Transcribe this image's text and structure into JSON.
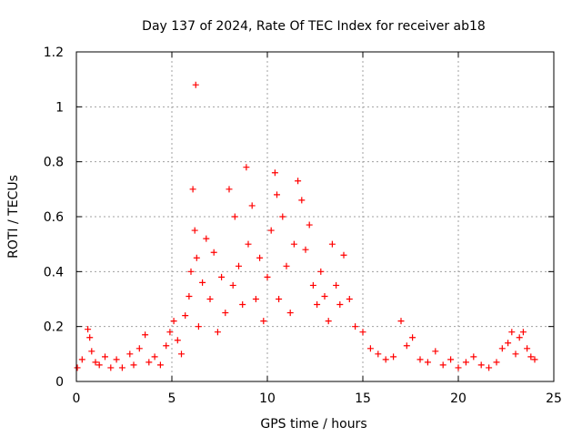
{
  "chart_data": {
    "type": "scatter",
    "title": "Day 137 of 2024, Rate Of TEC Index for receiver ab18",
    "xlabel": "GPS time / hours",
    "ylabel": "ROTI / TECUs",
    "xlim": [
      0,
      25
    ],
    "ylim": [
      0,
      1.2
    ],
    "x_ticks": [
      "0",
      "5",
      "10",
      "15",
      "20",
      "25"
    ],
    "y_ticks": [
      "0",
      "0.2",
      "0.4",
      "0.6",
      "0.8",
      "1",
      "1.2"
    ],
    "grid": true,
    "legend": "none",
    "marker": "plus",
    "color": "#ff0000",
    "series": [
      {
        "x": [
          0.05,
          0.3,
          0.6,
          0.7,
          0.8,
          1.0,
          1.2,
          1.5,
          1.8,
          2.1,
          2.4,
          2.8,
          3.0,
          3.3,
          3.6,
          3.8,
          4.1,
          4.4,
          4.7,
          4.9,
          5.1,
          5.3,
          5.5,
          5.7,
          5.9,
          6.0,
          6.1,
          6.2,
          6.25,
          6.3,
          6.4,
          6.6,
          6.8,
          7.0,
          7.2,
          7.4,
          7.6,
          7.8,
          8.0,
          8.2,
          8.3,
          8.5,
          8.7,
          8.9,
          9.0,
          9.2,
          9.4,
          9.6,
          9.8,
          10.0,
          10.2,
          10.4,
          10.5,
          10.6,
          10.8,
          11.0,
          11.2,
          11.4,
          11.6,
          11.8,
          12.0,
          12.2,
          12.4,
          12.6,
          12.8,
          13.0,
          13.2,
          13.4,
          13.6,
          13.8,
          14.0,
          14.3,
          14.6,
          15.0,
          15.4,
          15.8,
          16.2,
          16.6,
          17.0,
          17.3,
          17.6,
          18.0,
          18.4,
          18.8,
          19.2,
          19.6,
          20.0,
          20.4,
          20.8,
          21.2,
          21.6,
          22.0,
          22.3,
          22.6,
          22.8,
          23.0,
          23.2,
          23.4,
          23.6,
          23.8,
          24.0
        ],
        "y": [
          0.05,
          0.08,
          0.19,
          0.16,
          0.11,
          0.07,
          0.06,
          0.09,
          0.05,
          0.08,
          0.05,
          0.1,
          0.06,
          0.12,
          0.17,
          0.07,
          0.09,
          0.06,
          0.13,
          0.18,
          0.22,
          0.15,
          0.1,
          0.24,
          0.31,
          0.4,
          0.7,
          0.55,
          1.08,
          0.45,
          0.2,
          0.36,
          0.52,
          0.3,
          0.47,
          0.18,
          0.38,
          0.25,
          0.7,
          0.35,
          0.6,
          0.42,
          0.28,
          0.78,
          0.5,
          0.64,
          0.3,
          0.45,
          0.22,
          0.38,
          0.55,
          0.76,
          0.68,
          0.3,
          0.6,
          0.42,
          0.25,
          0.5,
          0.73,
          0.66,
          0.48,
          0.57,
          0.35,
          0.28,
          0.4,
          0.31,
          0.22,
          0.5,
          0.35,
          0.28,
          0.46,
          0.3,
          0.2,
          0.18,
          0.12,
          0.1,
          0.08,
          0.09,
          0.22,
          0.13,
          0.16,
          0.08,
          0.07,
          0.11,
          0.06,
          0.08,
          0.05,
          0.07,
          0.09,
          0.06,
          0.05,
          0.07,
          0.12,
          0.14,
          0.18,
          0.1,
          0.16,
          0.18,
          0.12,
          0.09,
          0.08
        ]
      }
    ]
  }
}
